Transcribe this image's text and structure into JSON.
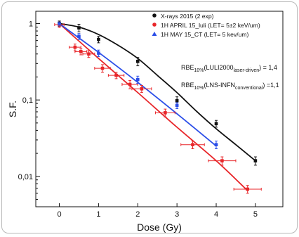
{
  "chart_data": {
    "type": "scatter",
    "title": "",
    "xlabel": "Dose (Gy)",
    "ylabel": "S.F.",
    "xlim": [
      -0.6,
      5.7
    ],
    "ylim": [
      0.004,
      1.45
    ],
    "yscale": "log",
    "xticks": [
      0,
      1,
      2,
      3,
      4,
      5
    ],
    "xtick_labels": [
      "0",
      "1",
      "2",
      "3",
      "4",
      "5"
    ],
    "yticks": [
      1,
      0.1,
      0.01
    ],
    "ytick_labels": [
      "1",
      "0,1",
      "0,01"
    ],
    "grid": false,
    "legend_position": "top-right",
    "series": [
      {
        "name": "X-rays 2015 (2 exp)",
        "color": "#111111",
        "points": [
          {
            "x": 0,
            "y": 1.0,
            "yerr": 0.08
          },
          {
            "x": 0.5,
            "y": 0.88,
            "yerr": 0.1
          },
          {
            "x": 1.0,
            "y": 0.62,
            "yerr": 0.06
          },
          {
            "x": 2.0,
            "y": 0.32,
            "yerr": 0.04
          },
          {
            "x": 3.0,
            "y": 0.098,
            "yerr": 0.012
          },
          {
            "x": 4.0,
            "y": 0.049,
            "yerr": 0.005
          },
          {
            "x": 5.0,
            "y": 0.016,
            "yerr": 0.002
          }
        ],
        "fit": [
          {
            "x": 0,
            "y": 1.0
          },
          {
            "x": 0.5,
            "y": 0.9
          },
          {
            "x": 1.0,
            "y": 0.72
          },
          {
            "x": 1.5,
            "y": 0.52
          },
          {
            "x": 2.0,
            "y": 0.35
          },
          {
            "x": 2.5,
            "y": 0.21
          },
          {
            "x": 3.0,
            "y": 0.125
          },
          {
            "x": 3.5,
            "y": 0.071
          },
          {
            "x": 4.0,
            "y": 0.042
          },
          {
            "x": 4.5,
            "y": 0.026
          },
          {
            "x": 5.0,
            "y": 0.016
          }
        ]
      },
      {
        "name": "1H APRIL 15_luli (LET= 5±2 keV/um)",
        "color": "#e8262a",
        "points": [
          {
            "x": 0,
            "y": 0.97,
            "xerr": 0.12,
            "yerr": 0.08
          },
          {
            "x": 0.4,
            "y": 0.49,
            "xerr": 0.15,
            "yerr": 0.05
          },
          {
            "x": 0.55,
            "y": 0.43,
            "xerr": 0.15,
            "yerr": 0.04
          },
          {
            "x": 0.75,
            "y": 0.4,
            "xerr": 0.15,
            "yerr": 0.04
          },
          {
            "x": 1.1,
            "y": 0.26,
            "xerr": 0.2,
            "yerr": 0.03
          },
          {
            "x": 1.45,
            "y": 0.21,
            "xerr": 0.2,
            "yerr": 0.02
          },
          {
            "x": 1.8,
            "y": 0.16,
            "xerr": 0.2,
            "yerr": 0.02
          },
          {
            "x": 2.1,
            "y": 0.14,
            "xerr": 0.25,
            "yerr": 0.015
          },
          {
            "x": 2.7,
            "y": 0.068,
            "xerr": 0.25,
            "yerr": 0.008
          },
          {
            "x": 3.4,
            "y": 0.026,
            "xerr": 0.3,
            "yerr": 0.003
          },
          {
            "x": 4.15,
            "y": 0.016,
            "xerr": 0.35,
            "yerr": 0.002
          },
          {
            "x": 4.8,
            "y": 0.0068,
            "xerr": 0.35,
            "yerr": 0.0008
          }
        ],
        "fit": [
          {
            "x": 0,
            "y": 1.0
          },
          {
            "x": 1.0,
            "y": 0.35
          },
          {
            "x": 2.0,
            "y": 0.125
          },
          {
            "x": 3.0,
            "y": 0.044
          },
          {
            "x": 4.0,
            "y": 0.016
          },
          {
            "x": 4.8,
            "y": 0.0065
          }
        ]
      },
      {
        "name": "1H MAY 15_CT (LET= 5 kev/um)",
        "color": "#2b4ee8",
        "points": [
          {
            "x": 0,
            "y": 0.99,
            "yerr": 0.06
          },
          {
            "x": 0.5,
            "y": 0.68,
            "yerr": 0.06
          },
          {
            "x": 1.0,
            "y": 0.41,
            "yerr": 0.04
          },
          {
            "x": 2.0,
            "y": 0.185,
            "yerr": 0.02
          },
          {
            "x": 3.0,
            "y": 0.085,
            "yerr": 0.008
          },
          {
            "x": 4.0,
            "y": 0.026,
            "yerr": 0.003
          }
        ],
        "fit": [
          {
            "x": 0,
            "y": 1.0
          },
          {
            "x": 1.0,
            "y": 0.42
          },
          {
            "x": 2.0,
            "y": 0.17
          },
          {
            "x": 3.0,
            "y": 0.066
          },
          {
            "x": 4.0,
            "y": 0.025
          }
        ]
      }
    ],
    "annotations": [
      {
        "text_parts": [
          "RBE",
          "10%",
          "(LULI2000",
          "laser-driven",
          ") = 1,4"
        ]
      },
      {
        "text_parts": [
          "RBE",
          "10%",
          "(LNS-INFN",
          "conventional",
          ") =1,1"
        ]
      }
    ]
  }
}
